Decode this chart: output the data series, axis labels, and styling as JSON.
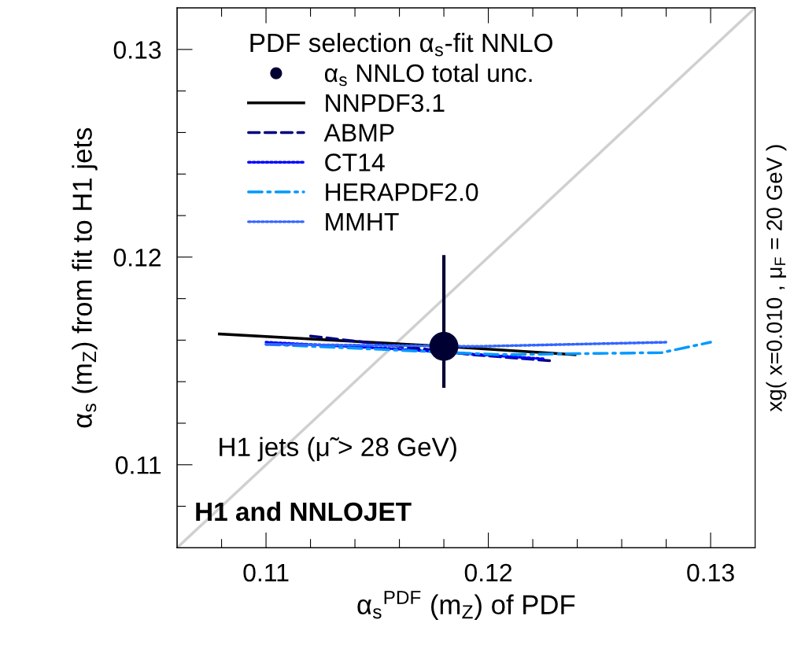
{
  "chart_data": {
    "type": "line",
    "xlabel": "α$_{s}$$^{PDF}$ (m$_{Z}$) of PDF",
    "ylabel": "α$_{s}$ (m$_{Z}$) from fit to H1 jets",
    "y2label": "xg( x=0.010 , μ$_{F}$ = 20 GeV )",
    "legend_title": "PDF selection α$_{s}$-fit NNLO",
    "legend": "top left",
    "annotations": [
      "H1 jets (μ̃ > 28 GeV)",
      "H1 and NNLOJET"
    ],
    "xlim": [
      0.106,
      0.132
    ],
    "ylim": [
      0.106,
      0.132
    ],
    "xticks": [
      {
        "value": 0.108,
        "label": null
      },
      0.11,
      {
        "value": 0.112,
        "label": null
      },
      {
        "value": 0.114,
        "label": null
      },
      {
        "value": 0.116,
        "label": null
      },
      {
        "value": 0.118,
        "label": null
      },
      0.12,
      {
        "value": 0.122,
        "label": null
      },
      {
        "value": 0.124,
        "label": null
      },
      {
        "value": 0.126,
        "label": null
      },
      {
        "value": 0.128,
        "label": null
      },
      0.13
    ],
    "yticks": [
      {
        "value": 0.108,
        "label": null
      },
      0.11,
      {
        "value": 0.112,
        "label": null
      },
      {
        "value": 0.114,
        "label": null
      },
      {
        "value": 0.116,
        "label": null
      },
      {
        "value": 0.118,
        "label": null
      },
      0.12,
      {
        "value": 0.122,
        "label": null
      },
      {
        "value": 0.124,
        "label": null
      },
      {
        "value": 0.126,
        "label": null
      },
      {
        "value": 0.128,
        "label": null
      },
      0.13
    ],
    "grid": false,
    "series": [
      {
        "color": "#d0d0d0",
        "line_style": "solid",
        "x": [
          0.106,
          0.132
        ],
        "values": [
          0.106,
          0.132
        ]
      },
      {
        "type": "scatter",
        "name": "α$_{s}$ NNLO total unc.",
        "color": "#000033",
        "marker": "circle",
        "x": [
          0.118
        ],
        "values": [
          0.1157
        ],
        "errors": [
          [
            0.1137,
            0.1201
          ]
        ]
      },
      {
        "name": "NNPDF3.1",
        "color": "#000000",
        "line_style": "solid",
        "x": [
          0.1079,
          0.118,
          0.1239
        ],
        "values": [
          0.1163,
          0.1157,
          0.1153
        ]
      },
      {
        "name": "ABMP",
        "color": "#000080",
        "line_style": "dashed",
        "x": [
          0.112,
          0.1193,
          0.1229
        ],
        "values": [
          0.1162,
          0.1153,
          0.115
        ]
      },
      {
        "name": "CT14",
        "color": "#0000ff",
        "line_style": "dotted",
        "x": [
          0.11,
          0.1155,
          0.1225
        ],
        "values": [
          0.1159,
          0.1156,
          0.1151
        ]
      },
      {
        "name": "HERAPDF2.0",
        "color": "#0099ff",
        "line_style": "dashdot",
        "x": [
          0.11,
          0.1205,
          0.1278,
          0.13
        ],
        "values": [
          0.1158,
          0.1153,
          0.1154,
          0.1159
        ]
      },
      {
        "name": "MMHT",
        "color": "#3366ff",
        "line_style": "dotted",
        "x": [
          0.11,
          0.1195,
          0.128
        ],
        "values": [
          0.1158,
          0.1157,
          0.1159
        ]
      }
    ]
  }
}
